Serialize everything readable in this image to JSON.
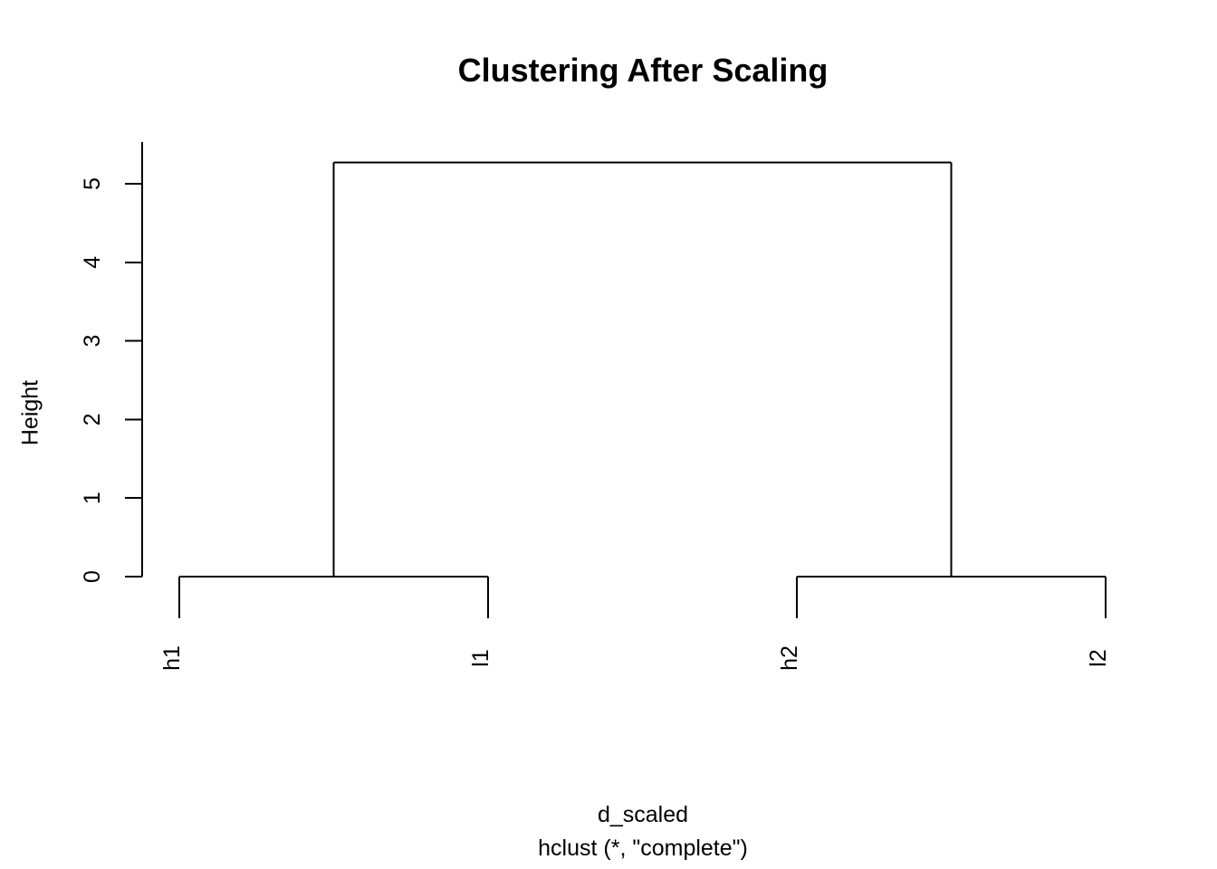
{
  "figure": {
    "background_color": "#ffffff",
    "foreground_color": "#000000"
  },
  "chart_data": {
    "type": "dendrogram",
    "title": "Clustering After Scaling",
    "ylabel": "Height",
    "xlabel_line1": "d_scaled",
    "xlabel_line2": "hclust (*, \"complete\")",
    "leaves": [
      "h1",
      "l1",
      "h2",
      "l2"
    ],
    "merges": [
      {
        "children": [
          "h1",
          "l1"
        ],
        "height": 0
      },
      {
        "children": [
          "h2",
          "l2"
        ],
        "height": 0
      },
      {
        "children": [
          "merge0",
          "merge1"
        ],
        "height": 5.27
      }
    ],
    "yticks": [
      0,
      1,
      2,
      3,
      4,
      5
    ],
    "ylim": [
      0,
      5.27
    ],
    "leaf_hang": 0.53,
    "grid": false,
    "legend": false,
    "line_color": "#000000"
  }
}
